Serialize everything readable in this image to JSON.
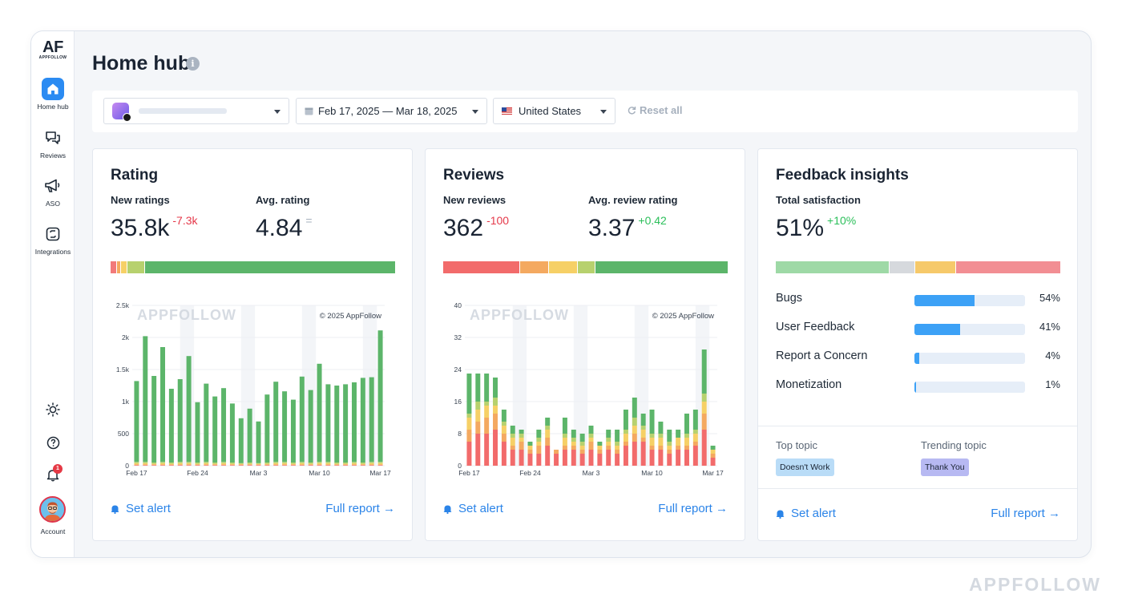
{
  "sidebar": {
    "logo": "AF",
    "logo_sub": "APPFOLLOW",
    "items": [
      {
        "label": "Home hub",
        "icon": "home-icon",
        "active": true
      },
      {
        "label": "Reviews",
        "icon": "chat-bubbles-icon",
        "active": false
      },
      {
        "label": "ASO",
        "icon": "megaphone-icon",
        "active": false
      },
      {
        "label": "Integrations",
        "icon": "integrations-icon",
        "active": false
      }
    ],
    "notifications_count": "1",
    "account_label": "Account"
  },
  "page": {
    "title": "Home hub",
    "info_glyph": "i"
  },
  "filters": {
    "date_range": "Feb 17, 2025 — Mar 18, 2025",
    "country": "United States",
    "reset_label": "Reset all"
  },
  "rating_card": {
    "title": "Rating",
    "new_ratings_label": "New ratings",
    "new_ratings_value": "35.8k",
    "new_ratings_delta": "-7.3k",
    "avg_rating_label": "Avg. rating",
    "avg_rating_value": "4.84",
    "avg_rating_delta": "=",
    "distribution": [
      {
        "color": "#f27a7a",
        "share": 0.02
      },
      {
        "color": "#f4a960",
        "share": 0.01
      },
      {
        "color": "#f6d066",
        "share": 0.02
      },
      {
        "color": "#b7d16e",
        "share": 0.06
      },
      {
        "color": "#5cb56a",
        "share": 0.89
      }
    ],
    "set_alert": "Set alert",
    "full_report": "Full report →"
  },
  "reviews_card": {
    "title": "Reviews",
    "new_reviews_label": "New reviews",
    "new_reviews_value": "362",
    "new_reviews_delta": "-100",
    "avg_review_label": "Avg. review rating",
    "avg_review_value": "3.37",
    "avg_review_delta": "+0.42",
    "distribution": [
      {
        "color": "#f26b6b",
        "share": 0.27
      },
      {
        "color": "#f4a960",
        "share": 0.1
      },
      {
        "color": "#f6d066",
        "share": 0.1
      },
      {
        "color": "#b7d16e",
        "share": 0.06
      },
      {
        "color": "#5cb56a",
        "share": 0.47
      }
    ],
    "set_alert": "Set alert",
    "full_report": "Full report →"
  },
  "feedback_card": {
    "title": "Feedback insights",
    "satisfaction_label": "Total satisfaction",
    "satisfaction_value": "51%",
    "satisfaction_delta": "+10%",
    "distribution": [
      {
        "color": "#9ed9a6",
        "share": 0.4
      },
      {
        "color": "#d6d9dd",
        "share": 0.09
      },
      {
        "color": "#f6c96a",
        "share": 0.14
      },
      {
        "color": "#f28e93",
        "share": 0.37
      }
    ],
    "categories": [
      {
        "name": "Bugs",
        "pct_label": "54%",
        "pct": 54
      },
      {
        "name": "User Feedback",
        "pct_label": "41%",
        "pct": 41
      },
      {
        "name": "Report a Concern",
        "pct_label": "4%",
        "pct": 4
      },
      {
        "name": "Monetization",
        "pct_label": "1%",
        "pct": 1
      }
    ],
    "top_topic_label": "Top topic",
    "top_topic": "Doesn't Work",
    "trending_topic_label": "Trending topic",
    "trending_topic": "Thank You",
    "set_alert": "Set alert",
    "full_report": "Full report →"
  },
  "chart_data": [
    {
      "type": "bar",
      "stacked": true,
      "watermark": "APPFOLLOW",
      "copyright": "© 2025 AppFollow",
      "x_ticks": [
        "Feb 17",
        "Feb 24",
        "Mar 3",
        "Mar 10",
        "Mar 17"
      ],
      "y_ticks": [
        "0",
        "500",
        "1k",
        "1.5k",
        "2k",
        "2.5k"
      ],
      "ylim": [
        0,
        2500
      ],
      "series_colors": [
        "#f27a7a",
        "#f4a960",
        "#f6d066",
        "#b7d16e",
        "#5cb56a"
      ],
      "bars": [
        [
          10,
          10,
          20,
          20,
          1260
        ],
        [
          10,
          10,
          20,
          20,
          1960
        ],
        [
          10,
          10,
          10,
          20,
          1350
        ],
        [
          10,
          10,
          20,
          20,
          1790
        ],
        [
          10,
          10,
          10,
          20,
          1150
        ],
        [
          10,
          10,
          20,
          20,
          1290
        ],
        [
          10,
          10,
          20,
          20,
          1650
        ],
        [
          10,
          10,
          10,
          20,
          940
        ],
        [
          10,
          10,
          20,
          20,
          1220
        ],
        [
          10,
          10,
          10,
          20,
          1030
        ],
        [
          10,
          10,
          20,
          20,
          1150
        ],
        [
          10,
          10,
          10,
          20,
          920
        ],
        [
          10,
          10,
          10,
          10,
          700
        ],
        [
          10,
          10,
          10,
          20,
          840
        ],
        [
          10,
          10,
          10,
          10,
          650
        ],
        [
          10,
          10,
          10,
          20,
          1060
        ],
        [
          10,
          10,
          20,
          20,
          1250
        ],
        [
          10,
          10,
          20,
          20,
          1100
        ],
        [
          10,
          10,
          10,
          20,
          980
        ],
        [
          10,
          10,
          20,
          20,
          1330
        ],
        [
          10,
          10,
          10,
          20,
          1130
        ],
        [
          10,
          10,
          20,
          20,
          1530
        ],
        [
          10,
          10,
          20,
          20,
          1210
        ],
        [
          10,
          10,
          10,
          20,
          1200
        ],
        [
          10,
          10,
          10,
          20,
          1220
        ],
        [
          10,
          10,
          20,
          20,
          1240
        ],
        [
          10,
          10,
          10,
          20,
          1320
        ],
        [
          10,
          10,
          20,
          20,
          1320
        ],
        [
          10,
          10,
          20,
          20,
          2050
        ]
      ]
    },
    {
      "type": "bar",
      "stacked": true,
      "watermark": "APPFOLLOW",
      "copyright": "© 2025 AppFollow",
      "x_ticks": [
        "Feb 17",
        "Feb 24",
        "Mar 3",
        "Mar 10",
        "Mar 17"
      ],
      "y_ticks": [
        "0",
        "8",
        "16",
        "24",
        "32",
        "40"
      ],
      "ylim": [
        0,
        40
      ],
      "series_colors": [
        "#f26b6b",
        "#f4a960",
        "#f6d066",
        "#b7d16e",
        "#5cb56a"
      ],
      "bars": [
        [
          6,
          3,
          3,
          1,
          10
        ],
        [
          8,
          3,
          3,
          2,
          7
        ],
        [
          8,
          4,
          3,
          1,
          7
        ],
        [
          9,
          4,
          2,
          2,
          5
        ],
        [
          6,
          2,
          2,
          1,
          3
        ],
        [
          4,
          1,
          2,
          1,
          2
        ],
        [
          4,
          2,
          1,
          1,
          1
        ],
        [
          3,
          1,
          1,
          0,
          1
        ],
        [
          3,
          2,
          1,
          1,
          2
        ],
        [
          5,
          2,
          2,
          1,
          2
        ],
        [
          3,
          1,
          0,
          0,
          0
        ],
        [
          4,
          1,
          2,
          1,
          4
        ],
        [
          4,
          1,
          1,
          1,
          2
        ],
        [
          3,
          1,
          1,
          1,
          2
        ],
        [
          4,
          2,
          1,
          1,
          2
        ],
        [
          3,
          1,
          1,
          0,
          1
        ],
        [
          4,
          1,
          1,
          1,
          2
        ],
        [
          3,
          1,
          1,
          1,
          3
        ],
        [
          5,
          1,
          2,
          1,
          5
        ],
        [
          6,
          2,
          2,
          2,
          5
        ],
        [
          6,
          1,
          2,
          1,
          3
        ],
        [
          4,
          1,
          2,
          1,
          6
        ],
        [
          4,
          1,
          2,
          1,
          3
        ],
        [
          3,
          1,
          1,
          1,
          3
        ],
        [
          4,
          1,
          2,
          0,
          2
        ],
        [
          4,
          1,
          2,
          1,
          5
        ],
        [
          5,
          1,
          2,
          1,
          5
        ],
        [
          9,
          4,
          3,
          2,
          11
        ],
        [
          2,
          1,
          1,
          0,
          1
        ]
      ]
    }
  ],
  "watermark": "APPFOLLOW"
}
